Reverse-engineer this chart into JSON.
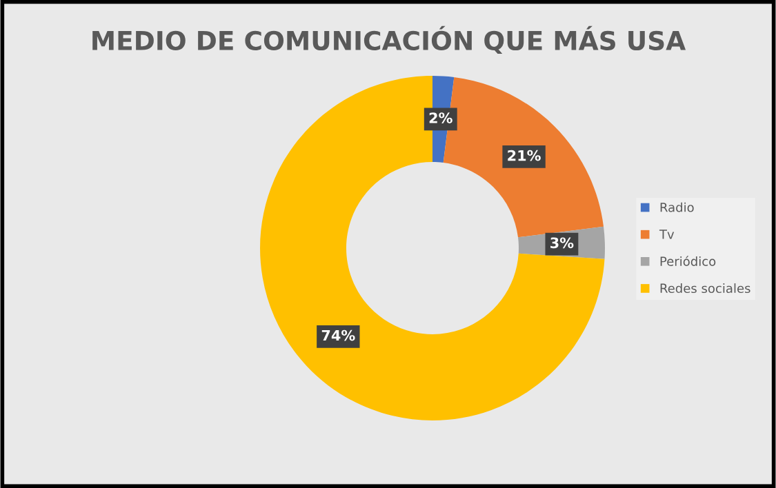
{
  "chart_data": {
    "type": "donut",
    "title": "MEDIO DE COMUNICACIÓN QUE MÁS USA",
    "categories": [
      "Radio",
      "Tv",
      "Periódico",
      "Redes sociales"
    ],
    "values": [
      2,
      21,
      3,
      74
    ],
    "colors": [
      "#4472c4",
      "#ed7d31",
      "#a5a5a5",
      "#ffc000"
    ],
    "value_labels": [
      "2%",
      "21%",
      "3%",
      "74%"
    ],
    "legend": "right"
  }
}
